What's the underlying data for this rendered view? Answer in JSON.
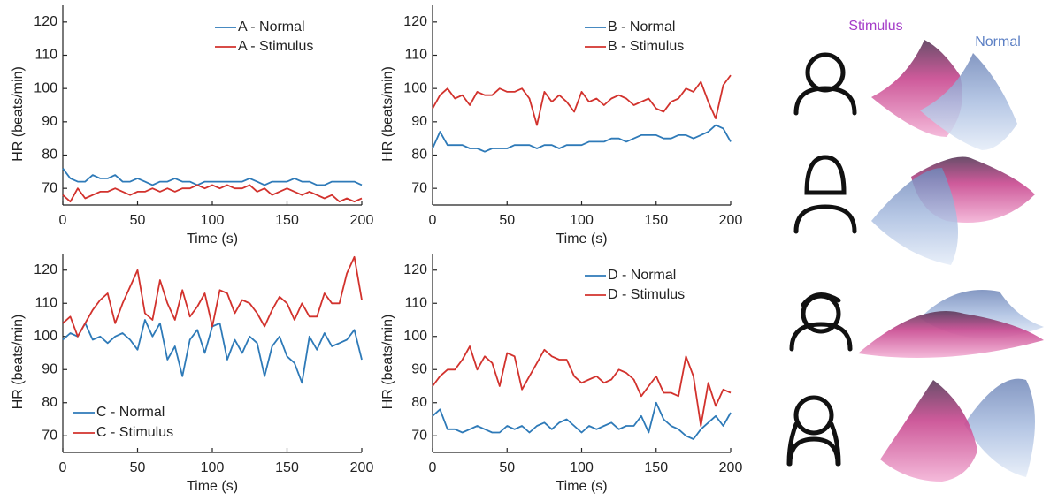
{
  "chart_data": [
    {
      "type": "line",
      "legend": "upper right",
      "xlabel": "Time (s)",
      "ylabel": "HR (beats/min)",
      "xlim": [
        0,
        200
      ],
      "ylim": [
        65,
        125
      ],
      "xticks": [
        0,
        50,
        100,
        150,
        200
      ],
      "yticks": [
        70,
        80,
        90,
        100,
        110,
        120
      ],
      "x": [
        0,
        5,
        10,
        15,
        20,
        25,
        30,
        35,
        40,
        45,
        50,
        55,
        60,
        65,
        70,
        75,
        80,
        85,
        90,
        95,
        100,
        105,
        110,
        115,
        120,
        125,
        130,
        135,
        140,
        145,
        150,
        155,
        160,
        165,
        170,
        175,
        180,
        185,
        190,
        195,
        200
      ],
      "series": [
        {
          "name": "A - Normal",
          "color": "#2e7ab8",
          "values": [
            76,
            73,
            72,
            72,
            74,
            73,
            73,
            74,
            72,
            72,
            73,
            72,
            71,
            72,
            72,
            73,
            72,
            72,
            71,
            72,
            72,
            72,
            72,
            72,
            72,
            73,
            72,
            71,
            72,
            72,
            72,
            73,
            72,
            72,
            71,
            71,
            72,
            72,
            72,
            72,
            71
          ]
        },
        {
          "name": "A - Stimulus",
          "color": "#d2322d",
          "values": [
            68,
            66,
            70,
            67,
            68,
            69,
            69,
            70,
            69,
            68,
            69,
            69,
            70,
            69,
            70,
            69,
            70,
            70,
            71,
            70,
            71,
            70,
            71,
            70,
            70,
            71,
            69,
            70,
            68,
            69,
            70,
            69,
            68,
            69,
            68,
            67,
            68,
            66,
            67,
            66,
            67
          ]
        }
      ]
    },
    {
      "type": "line",
      "legend": "upper right",
      "xlabel": "Time (s)",
      "ylabel": "HR (beats/min)",
      "xlim": [
        0,
        200
      ],
      "ylim": [
        65,
        125
      ],
      "xticks": [
        0,
        50,
        100,
        150,
        200
      ],
      "yticks": [
        70,
        80,
        90,
        100,
        110,
        120
      ],
      "x": [
        0,
        5,
        10,
        15,
        20,
        25,
        30,
        35,
        40,
        45,
        50,
        55,
        60,
        65,
        70,
        75,
        80,
        85,
        90,
        95,
        100,
        105,
        110,
        115,
        120,
        125,
        130,
        135,
        140,
        145,
        150,
        155,
        160,
        165,
        170,
        175,
        180,
        185,
        190,
        195,
        200
      ],
      "series": [
        {
          "name": "B - Normal",
          "color": "#2e7ab8",
          "values": [
            82,
            87,
            83,
            83,
            83,
            82,
            82,
            81,
            82,
            82,
            82,
            83,
            83,
            83,
            82,
            83,
            83,
            82,
            83,
            83,
            83,
            84,
            84,
            84,
            85,
            85,
            84,
            85,
            86,
            86,
            86,
            85,
            85,
            86,
            86,
            85,
            86,
            87,
            89,
            88,
            84
          ]
        },
        {
          "name": "B - Stimulus",
          "color": "#d2322d",
          "values": [
            94,
            98,
            100,
            97,
            98,
            95,
            99,
            98,
            98,
            100,
            99,
            99,
            100,
            97,
            89,
            99,
            96,
            98,
            96,
            93,
            99,
            96,
            97,
            95,
            97,
            98,
            97,
            95,
            96,
            97,
            94,
            93,
            96,
            97,
            100,
            99,
            102,
            96,
            91,
            101,
            104
          ]
        }
      ]
    },
    {
      "type": "line",
      "legend": "lower left",
      "xlabel": "Time (s)",
      "ylabel": "HR (beats/min)",
      "xlim": [
        0,
        200
      ],
      "ylim": [
        65,
        125
      ],
      "xticks": [
        0,
        50,
        100,
        150,
        200
      ],
      "yticks": [
        70,
        80,
        90,
        100,
        110,
        120
      ],
      "x": [
        0,
        5,
        10,
        15,
        20,
        25,
        30,
        35,
        40,
        45,
        50,
        55,
        60,
        65,
        70,
        75,
        80,
        85,
        90,
        95,
        100,
        105,
        110,
        115,
        120,
        125,
        130,
        135,
        140,
        145,
        150,
        155,
        160,
        165,
        170,
        175,
        180,
        185,
        190,
        195,
        200
      ],
      "series": [
        {
          "name": "C - Normal",
          "color": "#2e7ab8",
          "values": [
            99,
            101,
            100,
            104,
            99,
            100,
            98,
            100,
            101,
            99,
            96,
            105,
            100,
            104,
            93,
            97,
            88,
            99,
            102,
            95,
            103,
            104,
            93,
            99,
            95,
            100,
            98,
            88,
            97,
            100,
            94,
            92,
            86,
            100,
            96,
            101,
            97,
            98,
            99,
            102,
            93
          ]
        },
        {
          "name": "C - Stimulus",
          "color": "#d2322d",
          "values": [
            104,
            106,
            100,
            104,
            108,
            111,
            113,
            104,
            110,
            115,
            120,
            107,
            105,
            117,
            110,
            105,
            114,
            106,
            109,
            113,
            103,
            114,
            113,
            107,
            111,
            110,
            107,
            103,
            108,
            112,
            110,
            105,
            110,
            106,
            106,
            113,
            110,
            110,
            119,
            124,
            111
          ]
        }
      ]
    },
    {
      "type": "line",
      "legend": "upper right",
      "xlabel": "Time (s)",
      "ylabel": "HR (beats/min)",
      "xlim": [
        0,
        200
      ],
      "ylim": [
        65,
        125
      ],
      "xticks": [
        0,
        50,
        100,
        150,
        200
      ],
      "yticks": [
        70,
        80,
        90,
        100,
        110,
        120
      ],
      "x": [
        0,
        5,
        10,
        15,
        20,
        25,
        30,
        35,
        40,
        45,
        50,
        55,
        60,
        65,
        70,
        75,
        80,
        85,
        90,
        95,
        100,
        105,
        110,
        115,
        120,
        125,
        130,
        135,
        140,
        145,
        150,
        155,
        160,
        165,
        170,
        175,
        180,
        185,
        190,
        195,
        200
      ],
      "series": [
        {
          "name": "D - Normal",
          "color": "#2e7ab8",
          "values": [
            76,
            78,
            72,
            72,
            71,
            72,
            73,
            72,
            71,
            71,
            73,
            72,
            73,
            71,
            73,
            74,
            72,
            74,
            75,
            73,
            71,
            73,
            72,
            73,
            74,
            72,
            73,
            73,
            76,
            71,
            80,
            75,
            73,
            72,
            70,
            69,
            72,
            74,
            76,
            73,
            77
          ]
        },
        {
          "name": "D - Stimulus",
          "color": "#d2322d",
          "values": [
            85,
            88,
            90,
            90,
            93,
            97,
            90,
            94,
            92,
            85,
            95,
            94,
            84,
            88,
            92,
            96,
            94,
            93,
            93,
            88,
            86,
            87,
            88,
            86,
            87,
            90,
            89,
            87,
            82,
            85,
            88,
            83,
            83,
            82,
            94,
            88,
            73,
            86,
            79,
            84,
            83
          ]
        }
      ]
    }
  ],
  "illustration": {
    "stimulus_label": "Stimulus",
    "normal_label": "Normal"
  }
}
